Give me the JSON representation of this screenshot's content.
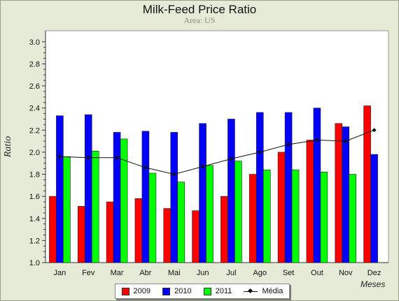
{
  "chart_data": {
    "type": "bar",
    "title": "Milk-Feed Price Ratio",
    "subtitle": "Area: US",
    "xlabel": "Meses",
    "ylabel": "Ratio",
    "ylim": [
      1.0,
      3.1
    ],
    "yticks": [
      "1.0",
      "1.2",
      "1.4",
      "1.6",
      "1.8",
      "2.0",
      "2.2",
      "2.4",
      "2.6",
      "2.8",
      "3.0"
    ],
    "categories": [
      "Jan",
      "Fev",
      "Mar",
      "Abr",
      "Mai",
      "Jun",
      "Jul",
      "Ago",
      "Set",
      "Out",
      "Nov",
      "Dez"
    ],
    "series": [
      {
        "name": "2009",
        "type": "bar",
        "color": "#ff0000",
        "values": [
          1.6,
          1.51,
          1.55,
          1.58,
          1.49,
          1.47,
          1.6,
          1.8,
          2.0,
          2.11,
          2.26,
          2.42
        ]
      },
      {
        "name": "2010",
        "type": "bar",
        "color": "#0000ff",
        "values": [
          2.33,
          2.34,
          2.18,
          2.19,
          2.18,
          2.26,
          2.3,
          2.36,
          2.36,
          2.4,
          2.23,
          1.98
        ]
      },
      {
        "name": "2011",
        "type": "bar",
        "color": "#00ff00",
        "values": [
          1.96,
          2.01,
          2.12,
          1.81,
          1.73,
          1.88,
          1.92,
          1.84,
          1.84,
          1.82,
          1.8,
          null
        ]
      },
      {
        "name": "Média",
        "type": "line",
        "color": "#111111",
        "marker": "diamond",
        "values": [
          1.96,
          1.95,
          1.95,
          1.86,
          1.8,
          1.87,
          1.94,
          2.0,
          2.07,
          2.11,
          2.1,
          2.2
        ]
      }
    ],
    "grid": false,
    "legend_position": "bottom"
  }
}
